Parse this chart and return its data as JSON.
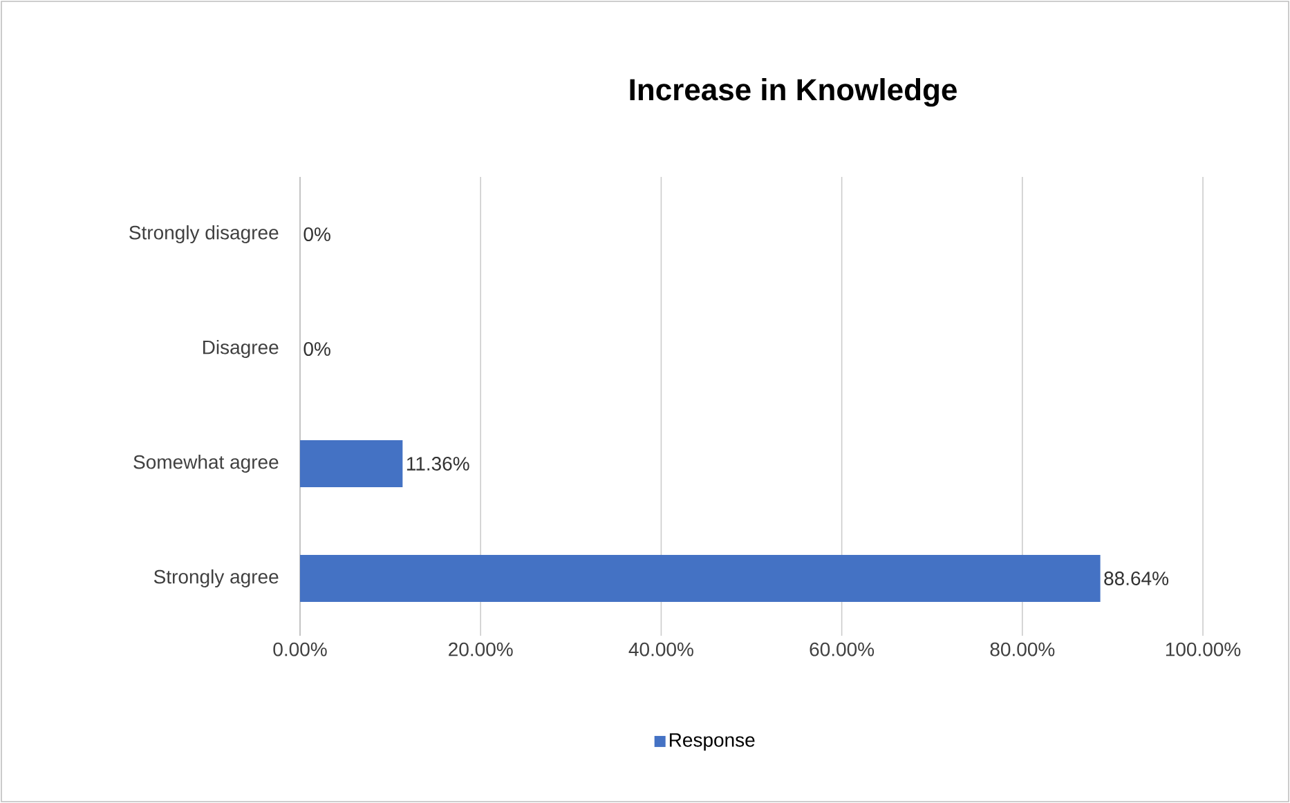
{
  "chart_data": {
    "type": "bar",
    "orientation": "horizontal",
    "title": "Increase in Knowledge",
    "categories": [
      "Strongly disagree",
      "Disagree",
      "Somewhat agree",
      "Strongly agree"
    ],
    "series": [
      {
        "name": "Response",
        "color": "#4472c4",
        "values": [
          0,
          0,
          11.36,
          88.64
        ],
        "value_labels": [
          "0%",
          "0%",
          "11.36%",
          "88.64%"
        ]
      }
    ],
    "xlim": [
      0,
      100
    ],
    "xticks": [
      {
        "value": 0,
        "label": "0.00%"
      },
      {
        "value": 20,
        "label": "20.00%"
      },
      {
        "value": 40,
        "label": "40.00%"
      },
      {
        "value": 60,
        "label": "60.00%"
      },
      {
        "value": 80,
        "label": "80.00%"
      },
      {
        "value": 100,
        "label": "100.00%"
      }
    ],
    "grid": "x",
    "legend": "bottom"
  }
}
